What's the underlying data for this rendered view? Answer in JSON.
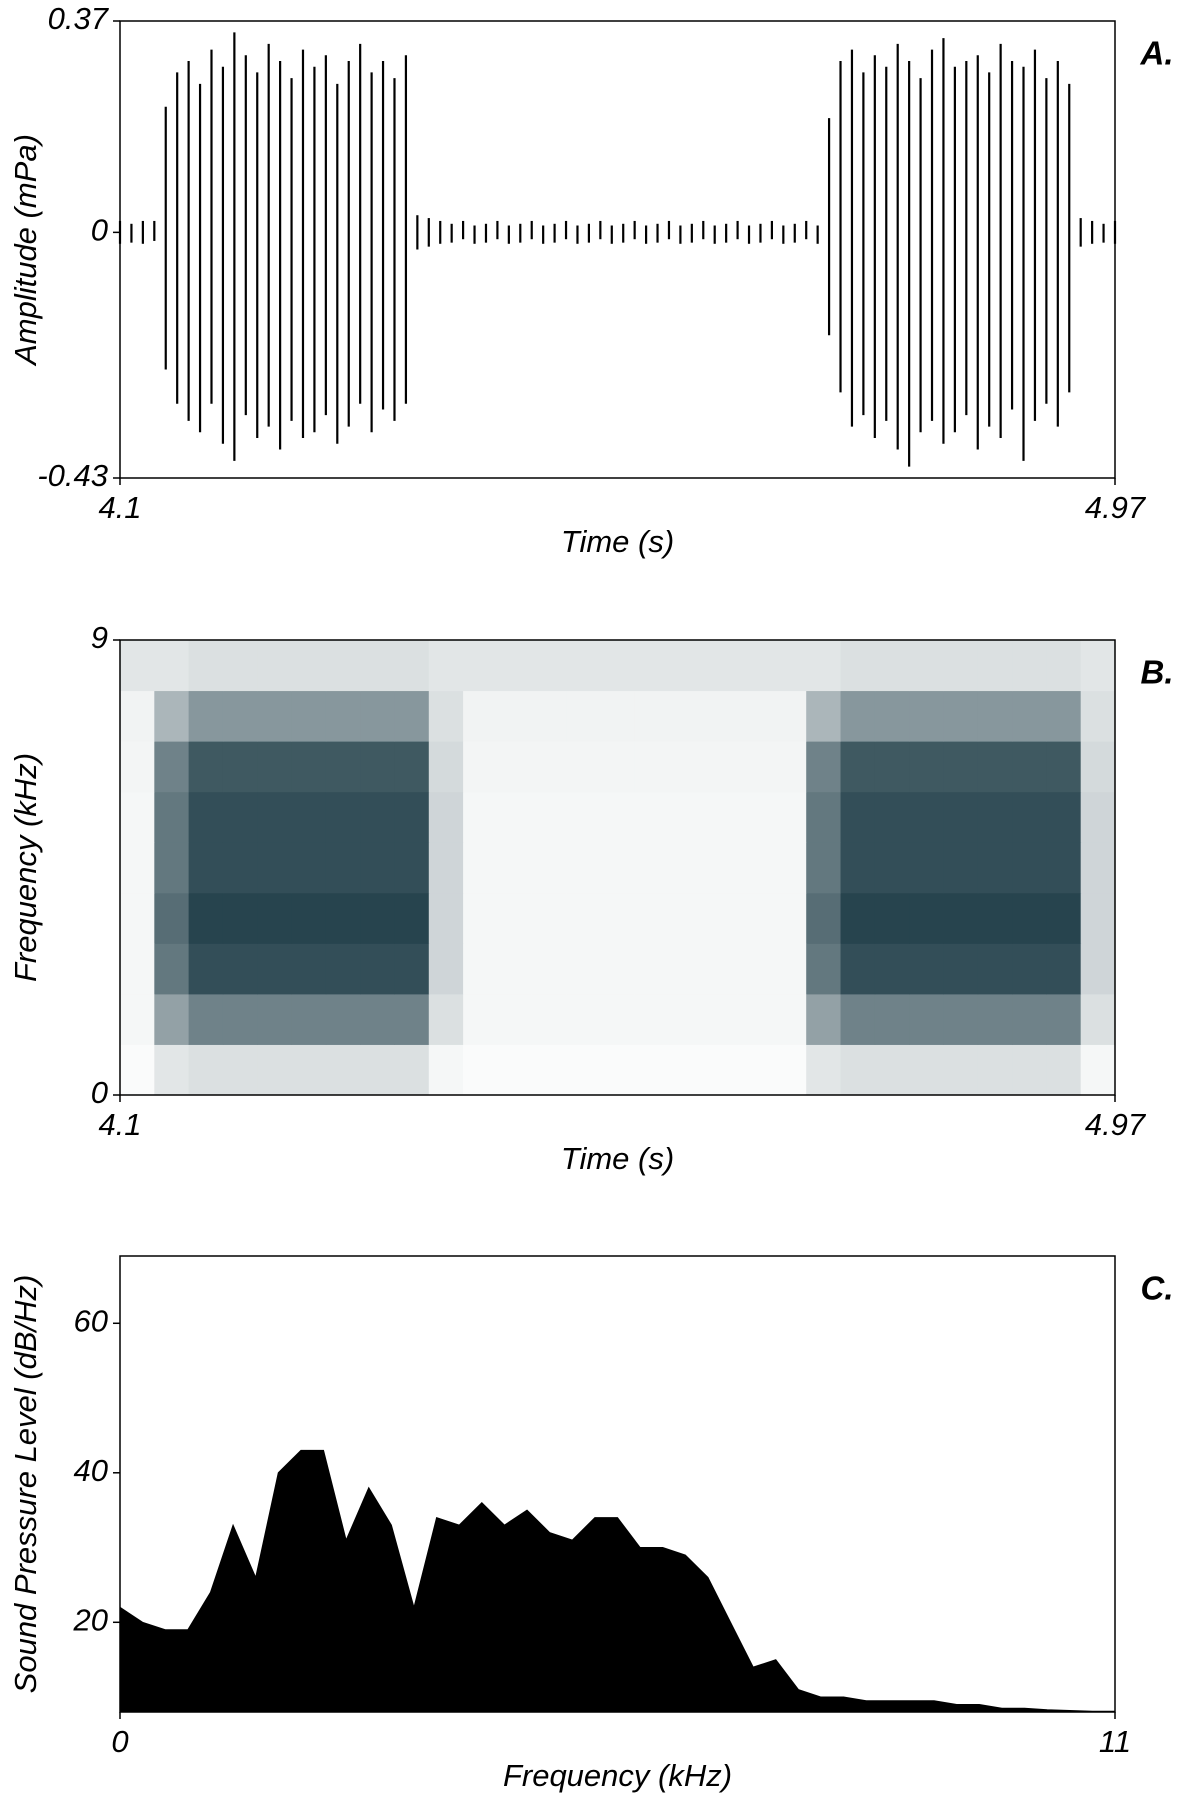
{
  "chart_data": [
    {
      "type": "waveform",
      "panel_label": "A.",
      "x_label": "Time (s)",
      "y_label": "Amplitude (mPa)",
      "xlim": [
        4.1,
        4.97
      ],
      "xticks": [
        4.1,
        4.97
      ],
      "ylim": [
        -0.43,
        0.37
      ],
      "yticks": [
        -0.43,
        0,
        0.37
      ],
      "color": "#000000",
      "x": [
        4.1,
        4.11,
        4.12,
        4.13,
        4.14,
        4.15,
        4.16,
        4.17,
        4.18,
        4.19,
        4.2,
        4.21,
        4.22,
        4.23,
        4.24,
        4.25,
        4.26,
        4.27,
        4.28,
        4.29,
        4.3,
        4.31,
        4.32,
        4.33,
        4.34,
        4.35,
        4.36,
        4.37,
        4.38,
        4.39,
        4.4,
        4.41,
        4.42,
        4.43,
        4.44,
        4.45,
        4.46,
        4.47,
        4.48,
        4.49,
        4.5,
        4.51,
        4.52,
        4.53,
        4.54,
        4.55,
        4.56,
        4.57,
        4.58,
        4.59,
        4.6,
        4.61,
        4.62,
        4.63,
        4.64,
        4.65,
        4.66,
        4.67,
        4.68,
        4.69,
        4.7,
        4.71,
        4.72,
        4.73,
        4.74,
        4.75,
        4.76,
        4.77,
        4.78,
        4.79,
        4.8,
        4.81,
        4.82,
        4.83,
        4.84,
        4.85,
        4.86,
        4.87,
        4.88,
        4.89,
        4.9,
        4.91,
        4.92,
        4.93,
        4.94,
        4.95,
        4.96,
        4.97
      ],
      "max": [
        0.02,
        0.015,
        0.02,
        0.02,
        0.22,
        0.28,
        0.3,
        0.26,
        0.32,
        0.29,
        0.35,
        0.31,
        0.28,
        0.33,
        0.3,
        0.27,
        0.32,
        0.29,
        0.31,
        0.26,
        0.3,
        0.33,
        0.28,
        0.3,
        0.27,
        0.31,
        0.03,
        0.025,
        0.02,
        0.015,
        0.02,
        0.012,
        0.015,
        0.02,
        0.012,
        0.015,
        0.02,
        0.012,
        0.015,
        0.02,
        0.012,
        0.015,
        0.02,
        0.012,
        0.015,
        0.02,
        0.012,
        0.015,
        0.02,
        0.012,
        0.015,
        0.02,
        0.012,
        0.015,
        0.02,
        0.012,
        0.015,
        0.02,
        0.012,
        0.015,
        0.02,
        0.012,
        0.2,
        0.3,
        0.32,
        0.28,
        0.31,
        0.29,
        0.33,
        0.3,
        0.27,
        0.32,
        0.34,
        0.29,
        0.3,
        0.31,
        0.28,
        0.33,
        0.3,
        0.29,
        0.32,
        0.27,
        0.3,
        0.26,
        0.025,
        0.02,
        0.015,
        0.02
      ],
      "min": [
        -0.02,
        -0.018,
        -0.02,
        -0.015,
        -0.24,
        -0.3,
        -0.33,
        -0.35,
        -0.3,
        -0.37,
        -0.4,
        -0.32,
        -0.36,
        -0.34,
        -0.38,
        -0.33,
        -0.36,
        -0.35,
        -0.32,
        -0.37,
        -0.34,
        -0.3,
        -0.35,
        -0.31,
        -0.33,
        -0.3,
        -0.03,
        -0.025,
        -0.02,
        -0.018,
        -0.012,
        -0.02,
        -0.018,
        -0.012,
        -0.02,
        -0.018,
        -0.012,
        -0.02,
        -0.018,
        -0.012,
        -0.02,
        -0.018,
        -0.012,
        -0.02,
        -0.018,
        -0.012,
        -0.02,
        -0.018,
        -0.012,
        -0.02,
        -0.018,
        -0.012,
        -0.02,
        -0.018,
        -0.012,
        -0.02,
        -0.018,
        -0.012,
        -0.02,
        -0.018,
        -0.012,
        -0.02,
        -0.18,
        -0.28,
        -0.34,
        -0.32,
        -0.36,
        -0.33,
        -0.38,
        -0.41,
        -0.35,
        -0.33,
        -0.37,
        -0.35,
        -0.32,
        -0.38,
        -0.34,
        -0.36,
        -0.31,
        -0.4,
        -0.33,
        -0.3,
        -0.34,
        -0.28,
        -0.025,
        -0.02,
        -0.018,
        -0.02
      ]
    },
    {
      "type": "heatmap",
      "panel_label": "B.",
      "x_label": "Time (s)",
      "y_label": "Frequency (kHz)",
      "xlim": [
        4.1,
        4.97
      ],
      "xticks": [
        4.1,
        4.97
      ],
      "ylim": [
        0,
        9
      ],
      "yticks": [
        0,
        9
      ],
      "color": "#0f2f3a",
      "xbins": [
        4.1,
        4.13,
        4.16,
        4.19,
        4.22,
        4.25,
        4.28,
        4.31,
        4.34,
        4.37,
        4.4,
        4.43,
        4.46,
        4.49,
        4.52,
        4.55,
        4.58,
        4.61,
        4.64,
        4.67,
        4.7,
        4.73,
        4.76,
        4.79,
        4.82,
        4.85,
        4.88,
        4.91,
        4.94,
        4.97
      ],
      "ybins": [
        0,
        1,
        2,
        3,
        4,
        5,
        6,
        7,
        8,
        9
      ],
      "values": [
        [
          0.02,
          0.12,
          0.15,
          0.15,
          0.15,
          0.15,
          0.15,
          0.15,
          0.15,
          0.04,
          0.02,
          0.02,
          0.02,
          0.02,
          0.02,
          0.02,
          0.02,
          0.02,
          0.02,
          0.02,
          0.12,
          0.15,
          0.15,
          0.15,
          0.15,
          0.15,
          0.15,
          0.15,
          0.04
        ],
        [
          0.04,
          0.45,
          0.6,
          0.6,
          0.6,
          0.6,
          0.6,
          0.6,
          0.6,
          0.15,
          0.04,
          0.04,
          0.04,
          0.04,
          0.04,
          0.04,
          0.04,
          0.04,
          0.04,
          0.04,
          0.45,
          0.6,
          0.6,
          0.6,
          0.6,
          0.6,
          0.6,
          0.6,
          0.15
        ],
        [
          0.04,
          0.65,
          0.85,
          0.85,
          0.85,
          0.85,
          0.85,
          0.85,
          0.85,
          0.2,
          0.04,
          0.04,
          0.04,
          0.04,
          0.04,
          0.04,
          0.04,
          0.04,
          0.04,
          0.04,
          0.65,
          0.85,
          0.85,
          0.85,
          0.85,
          0.85,
          0.85,
          0.85,
          0.2
        ],
        [
          0.04,
          0.7,
          0.9,
          0.9,
          0.9,
          0.9,
          0.9,
          0.9,
          0.9,
          0.2,
          0.04,
          0.04,
          0.04,
          0.04,
          0.04,
          0.04,
          0.04,
          0.04,
          0.04,
          0.04,
          0.7,
          0.9,
          0.9,
          0.9,
          0.9,
          0.9,
          0.9,
          0.9,
          0.2
        ],
        [
          0.04,
          0.65,
          0.85,
          0.85,
          0.85,
          0.85,
          0.85,
          0.85,
          0.85,
          0.2,
          0.04,
          0.04,
          0.04,
          0.04,
          0.04,
          0.04,
          0.04,
          0.04,
          0.04,
          0.04,
          0.65,
          0.85,
          0.85,
          0.85,
          0.85,
          0.85,
          0.85,
          0.85,
          0.2
        ],
        [
          0.04,
          0.65,
          0.85,
          0.85,
          0.85,
          0.85,
          0.85,
          0.85,
          0.85,
          0.2,
          0.04,
          0.04,
          0.04,
          0.04,
          0.04,
          0.04,
          0.04,
          0.04,
          0.04,
          0.04,
          0.65,
          0.85,
          0.85,
          0.85,
          0.85,
          0.85,
          0.85,
          0.85,
          0.2
        ],
        [
          0.05,
          0.6,
          0.8,
          0.8,
          0.8,
          0.8,
          0.8,
          0.8,
          0.8,
          0.18,
          0.05,
          0.05,
          0.05,
          0.05,
          0.05,
          0.05,
          0.05,
          0.05,
          0.05,
          0.05,
          0.6,
          0.8,
          0.8,
          0.8,
          0.8,
          0.8,
          0.8,
          0.8,
          0.18
        ],
        [
          0.06,
          0.35,
          0.5,
          0.5,
          0.5,
          0.5,
          0.5,
          0.5,
          0.5,
          0.15,
          0.06,
          0.06,
          0.06,
          0.06,
          0.06,
          0.06,
          0.06,
          0.06,
          0.06,
          0.06,
          0.35,
          0.5,
          0.5,
          0.5,
          0.5,
          0.5,
          0.5,
          0.5,
          0.15
        ],
        [
          0.12,
          0.12,
          0.15,
          0.15,
          0.15,
          0.15,
          0.15,
          0.15,
          0.15,
          0.12,
          0.12,
          0.12,
          0.12,
          0.12,
          0.12,
          0.12,
          0.12,
          0.12,
          0.12,
          0.12,
          0.12,
          0.15,
          0.15,
          0.15,
          0.15,
          0.15,
          0.15,
          0.15,
          0.12
        ]
      ]
    },
    {
      "type": "area",
      "panel_label": "C.",
      "x_label": "Frequency (kHz)",
      "y_label": "Sound Pressure Level (dB/Hz)",
      "xlim": [
        0,
        11
      ],
      "xticks": [
        0,
        11
      ],
      "ylim": [
        8,
        69
      ],
      "yticks": [
        20,
        40,
        60
      ],
      "color": "#000000",
      "x": [
        0,
        0.25,
        0.5,
        0.75,
        1,
        1.25,
        1.5,
        1.75,
        2,
        2.25,
        2.5,
        2.75,
        3,
        3.25,
        3.5,
        3.75,
        4,
        4.25,
        4.5,
        4.75,
        5,
        5.25,
        5.5,
        5.75,
        6,
        6.25,
        6.5,
        6.75,
        7,
        7.25,
        7.5,
        7.75,
        8,
        8.25,
        8.5,
        8.75,
        9,
        9.25,
        9.5,
        9.75,
        10,
        10.25,
        10.5,
        10.75,
        11
      ],
      "values": [
        22,
        20,
        19,
        19,
        24,
        33,
        26,
        40,
        43,
        43,
        31,
        38,
        33,
        22,
        34,
        33,
        36,
        33,
        35,
        32,
        31,
        34,
        34,
        30,
        30,
        29,
        26,
        20,
        14,
        15,
        11,
        10,
        10,
        9.5,
        9.5,
        9.5,
        9.5,
        9,
        9,
        8.5,
        8.5,
        8.3,
        8.2,
        8.1,
        8.1
      ]
    }
  ]
}
